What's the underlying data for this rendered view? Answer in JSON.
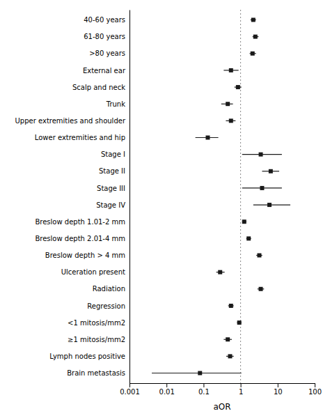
{
  "chart_data": {
    "type": "forest",
    "x_label": "aOR",
    "categories": [
      "40-60 years",
      "61-80 years",
      ">80 years",
      "External ear",
      "Scalp and neck",
      "Trunk",
      "Upper extremities and shoulder",
      "Lower extremities and hip",
      "Stage I",
      "Stage II",
      "Stage III",
      "Stage IV",
      "Breslow depth 1.01-2 mm",
      "Breslow depth 2.01-4 mm",
      "Breslow depth > 4 mm",
      "Ulceration present",
      "Radiation",
      "Regression",
      "<1 mitosis/mm2",
      "≥1 mitosis/mm2",
      "Lymph nodes positive",
      "Brain metastasis"
    ],
    "values": [
      2.2,
      2.5,
      2.1,
      0.55,
      0.85,
      0.45,
      0.55,
      0.13,
      3.5,
      6.5,
      3.8,
      6.0,
      1.25,
      1.65,
      3.2,
      0.28,
      3.5,
      0.55,
      0.92,
      0.45,
      0.52,
      0.08
    ],
    "ci_low": [
      1.85,
      2.1,
      1.75,
      0.35,
      0.68,
      0.3,
      0.4,
      0.06,
      1.1,
      3.8,
      1.1,
      2.2,
      1.1,
      1.42,
      2.65,
      0.22,
      2.85,
      0.46,
      0.8,
      0.35,
      0.41,
      0.004
    ],
    "ci_high": [
      2.6,
      3.05,
      2.6,
      0.88,
      1.05,
      0.62,
      0.73,
      0.25,
      13.0,
      11.0,
      13.0,
      22.0,
      1.44,
      1.92,
      3.85,
      0.37,
      4.3,
      0.65,
      1.05,
      0.58,
      0.65,
      1.05
    ],
    "reference_line": 1.0,
    "log": "x",
    "xlim": [
      0.001,
      100
    ],
    "xticks": [
      0.001,
      0.01,
      0.1,
      1,
      10,
      100
    ],
    "color": "#1a1a1a",
    "marker": "square",
    "grid": false
  }
}
